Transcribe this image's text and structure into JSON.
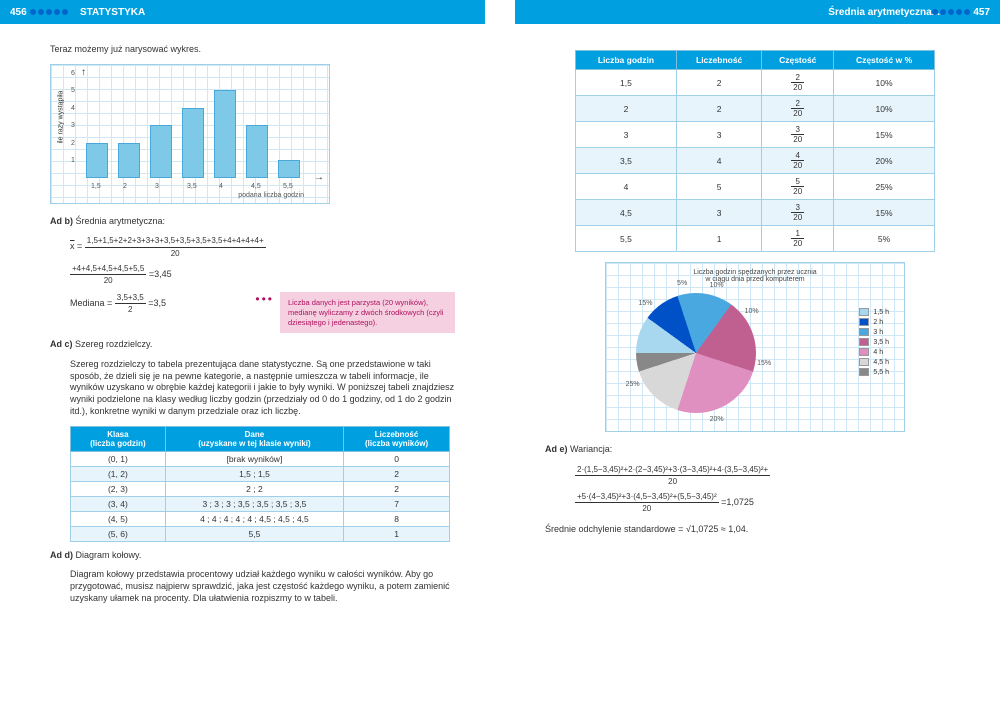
{
  "left": {
    "page_num": "456",
    "header": "STATYSTYKA",
    "intro": "Teraz możemy już narysować wykres.",
    "bar_chart": {
      "type": "bar",
      "ylabel": "ile razy wystąpiła",
      "xlabel": "podana liczba godzin",
      "categories": [
        "1,5",
        "2",
        "3",
        "3,5",
        "4",
        "4,5",
        "5,5"
      ],
      "values": [
        2,
        2,
        3,
        4,
        5,
        3,
        1
      ],
      "ymax": 6,
      "yticks": [
        "1",
        "2",
        "3",
        "4",
        "5",
        "6"
      ],
      "bar_color": "#7ec8e8",
      "bar_border": "#4aa8d8",
      "grid_color": "#d0e8f5"
    },
    "ad_b_label": "Ad b)",
    "ad_b_title": "Średnia arytmetyczna:",
    "mean_num1": "1,5+1,5+2+2+3+3+3+3,5+3,5+3,5+3,5+4+4+4+4+",
    "mean_num2": "+4+4,5+4,5+4,5+5,5",
    "mean_den": "20",
    "mean_result": "=3,45",
    "median_label": "Mediana =",
    "median_num": "3,5+3,5",
    "median_den": "2",
    "median_result": "=3,5",
    "hint": "Liczba danych jest parzysta (20 wyników), medianę wyliczamy z dwóch środkowych (czyli dziesiątego i jedenastego).",
    "ad_c_label": "Ad c)",
    "ad_c_title": "Szereg rozdzielczy.",
    "ad_c_text": "Szereg rozdzielczy to tabela prezentująca dane statystyczne. Są one przedstawione w taki sposób, że dzieli się je na pewne kategorie, a następnie umieszcza w tabeli informacje, ile wyników uzyskano w obrębie każdej kategorii i jakie to były wyniki. W poniższej tabeli znajdziesz wyniki podzielone na klasy według liczby godzin (przedziały od 0 do 1 godziny, od 1 do 2 godzin itd.), konkretne wyniki w danym przedziale oraz ich liczbę.",
    "class_table": {
      "headers": [
        "Klasa\n(liczba godzin)",
        "Dane\n(uzyskane w tej klasie wyniki)",
        "Liczebność\n(liczba wyników)"
      ],
      "rows": [
        [
          "(0, 1)",
          "[brak wyników]",
          "0"
        ],
        [
          "(1, 2)",
          "1,5 ; 1,5",
          "2"
        ],
        [
          "(2, 3)",
          "2 ; 2",
          "2"
        ],
        [
          "(3, 4)",
          "3 ; 3 ; 3 ; 3,5 ; 3,5 ; 3,5 ; 3,5",
          "7"
        ],
        [
          "(4, 5)",
          "4 ; 4 ; 4 ; 4 ; 4 ; 4,5 ; 4,5 ; 4,5",
          "8"
        ],
        [
          "(5, 6)",
          "5,5",
          "1"
        ]
      ]
    },
    "ad_d_label": "Ad d)",
    "ad_d_title": "Diagram kołowy.",
    "ad_d_text": "Diagram kołowy przedstawia procentowy udział każdego wyniku w całości wyników. Aby go przygotować, musisz najpierw sprawdzić, jaka jest częstość każdego wyniku, a potem zamienić uzyskany ułamek na procenty. Dla ułatwienia rozpiszmy to w tabeli."
  },
  "right": {
    "page_num": "457",
    "header": "Średnia arytmetyczna...",
    "freq_table": {
      "headers": [
        "Liczba godzin",
        "Liczebność",
        "Częstość",
        "Częstość w %"
      ],
      "rows": [
        [
          "1,5",
          "2",
          "2/20",
          "10%"
        ],
        [
          "2",
          "2",
          "2/20",
          "10%"
        ],
        [
          "3",
          "3",
          "3/20",
          "15%"
        ],
        [
          "3,5",
          "4",
          "4/20",
          "20%"
        ],
        [
          "4",
          "5",
          "5/20",
          "25%"
        ],
        [
          "4,5",
          "3",
          "3/20",
          "15%"
        ],
        [
          "5,5",
          "1",
          "1/20",
          "5%"
        ]
      ]
    },
    "pie": {
      "title": "Liczba godzin spędzanych przez ucznia\nw ciągu dnia przed komputerem",
      "slices": [
        {
          "label": "1,5 h",
          "pct": 10,
          "color": "#a8d8f0"
        },
        {
          "label": "2 h",
          "pct": 10,
          "color": "#0050c8"
        },
        {
          "label": "3 h",
          "pct": 15,
          "color": "#4aa8e0"
        },
        {
          "label": "3,5 h",
          "pct": 20,
          "color": "#c06090"
        },
        {
          "label": "4 h",
          "pct": 25,
          "color": "#e090c0"
        },
        {
          "label": "4,5 h",
          "pct": 15,
          "color": "#d8d8d8"
        },
        {
          "label": "5,5 h",
          "pct": 5,
          "color": "#888888"
        }
      ]
    },
    "ad_e_label": "Ad e)",
    "ad_e_title": "Wariancja:",
    "var_num1": "2·(1,5−3,45)²+2·(2−3,45)²+3·(3−3,45)²+4·(3,5−3,45)²+",
    "var_num2": "+5·(4−3,45)²+3·(4,5−3,45)²+(5,5−3,45)²",
    "var_den": "20",
    "var_result": "=1,0725",
    "std_label": "Średnie odchylenie standardowe =",
    "std_expr": "√1,0725 ≈ 1,04."
  }
}
